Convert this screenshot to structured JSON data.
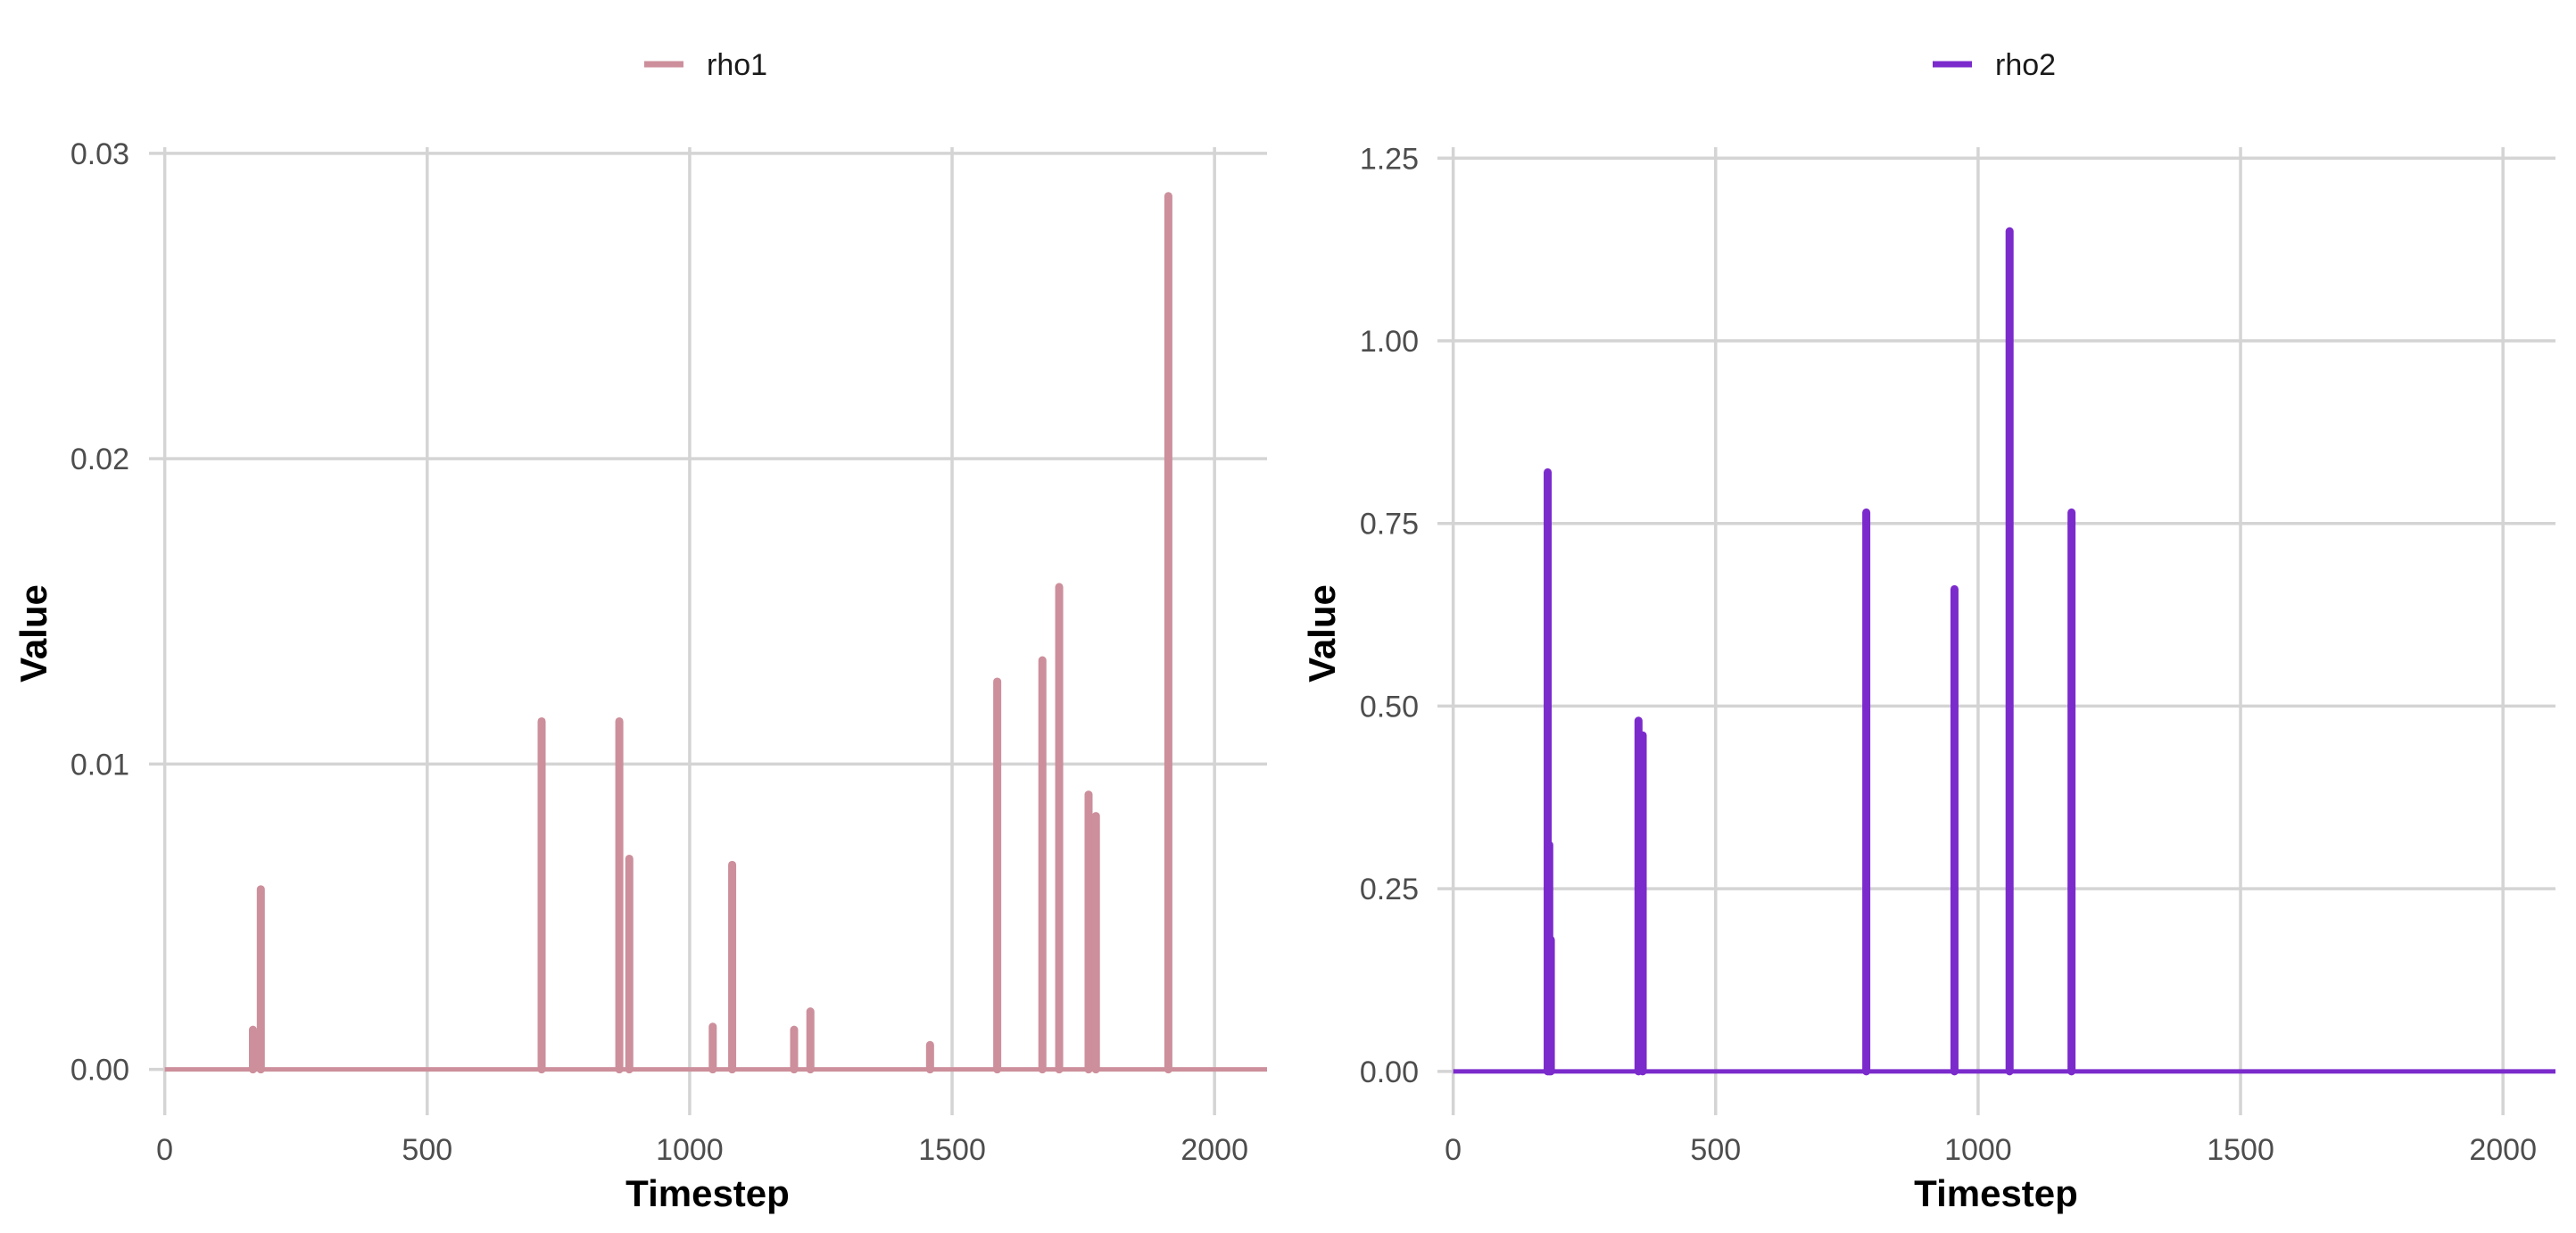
{
  "colors": {
    "rho1": "#cc8f9b",
    "rho2": "#7b2bcc",
    "grid": "#d4d4d4"
  },
  "chart_data": [
    {
      "type": "line",
      "xlabel": "Timestep",
      "ylabel": "Value",
      "legend": "top",
      "grid": true,
      "xlim": [
        -30,
        2100
      ],
      "ylim": [
        -0.0015,
        0.0302
      ],
      "x_ticks": [
        0,
        500,
        1000,
        1500,
        2000
      ],
      "x_tick_labels": [
        "0",
        "500",
        "1000",
        "1500",
        "2000"
      ],
      "y_ticks": [
        0,
        0.01,
        0.02,
        0.03
      ],
      "y_tick_labels": [
        "0.00",
        "0.01",
        "0.02",
        "0.03"
      ],
      "series": [
        {
          "name": "rho1",
          "baseline": [
            0,
            2100
          ],
          "spikes": [
            {
              "x": 168,
              "y": 0.0013
            },
            {
              "x": 183,
              "y": 0.0059
            },
            {
              "x": 718,
              "y": 0.0114
            },
            {
              "x": 866,
              "y": 0.0114
            },
            {
              "x": 885,
              "y": 0.0069
            },
            {
              "x": 1044,
              "y": 0.0014
            },
            {
              "x": 1081,
              "y": 0.0067
            },
            {
              "x": 1199,
              "y": 0.0013
            },
            {
              "x": 1230,
              "y": 0.0019
            },
            {
              "x": 1458,
              "y": 0.0008
            },
            {
              "x": 1586,
              "y": 0.0127
            },
            {
              "x": 1672,
              "y": 0.0134
            },
            {
              "x": 1704,
              "y": 0.0158
            },
            {
              "x": 1760,
              "y": 0.009
            },
            {
              "x": 1774,
              "y": 0.0083
            },
            {
              "x": 1912,
              "y": 0.0286
            }
          ]
        }
      ]
    },
    {
      "type": "line",
      "xlabel": "Timestep",
      "ylabel": "Value",
      "legend": "top",
      "grid": true,
      "xlim": [
        -30,
        2100
      ],
      "ylim": [
        -0.06,
        1.265
      ],
      "x_ticks": [
        0,
        500,
        1000,
        1500,
        2000
      ],
      "x_tick_labels": [
        "0",
        "500",
        "1000",
        "1500",
        "2000"
      ],
      "y_ticks": [
        0,
        0.25,
        0.5,
        0.75,
        1.0,
        1.25
      ],
      "y_tick_labels": [
        "0.00",
        "0.25",
        "0.50",
        "0.75",
        "1.00",
        "1.25"
      ],
      "series": [
        {
          "name": "rho2",
          "baseline": [
            0,
            2100
          ],
          "spikes": [
            {
              "x": 180,
              "y": 0.82
            },
            {
              "x": 183,
              "y": 0.31
            },
            {
              "x": 186,
              "y": 0.18
            },
            {
              "x": 353,
              "y": 0.48
            },
            {
              "x": 361,
              "y": 0.46
            },
            {
              "x": 787,
              "y": 0.765
            },
            {
              "x": 955,
              "y": 0.66
            },
            {
              "x": 1060,
              "y": 1.15
            },
            {
              "x": 1178,
              "y": 0.765
            }
          ]
        }
      ]
    }
  ]
}
